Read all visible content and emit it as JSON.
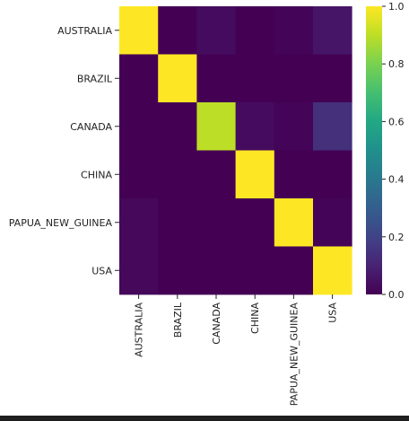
{
  "chart_data": {
    "type": "heatmap",
    "title": "",
    "xlabel": "",
    "ylabel": "",
    "rows": [
      "AUSTRALIA",
      "BRAZIL",
      "CANADA",
      "CHINA",
      "PAPUA_NEW_GUINEA",
      "USA"
    ],
    "columns": [
      "AUSTRALIA",
      "BRAZIL",
      "CANADA",
      "CHINA",
      "PAPUA_NEW_GUINEA",
      "USA"
    ],
    "values": [
      [
        1.0,
        0.0,
        0.03,
        0.0,
        0.01,
        0.06
      ],
      [
        0.0,
        1.0,
        0.0,
        0.0,
        0.0,
        0.0
      ],
      [
        0.0,
        0.0,
        0.9,
        0.03,
        0.01,
        0.14
      ],
      [
        0.0,
        0.0,
        0.0,
        1.0,
        0.0,
        0.0
      ],
      [
        0.02,
        0.0,
        0.0,
        0.0,
        1.0,
        0.01
      ],
      [
        0.02,
        0.0,
        0.0,
        0.0,
        0.0,
        1.0
      ]
    ],
    "colorbar": {
      "min": 0.0,
      "max": 1.0,
      "ticks": [
        "0.0",
        "0.2",
        "0.4",
        "0.6",
        "0.8",
        "1.0"
      ],
      "colormap": "viridis"
    }
  }
}
